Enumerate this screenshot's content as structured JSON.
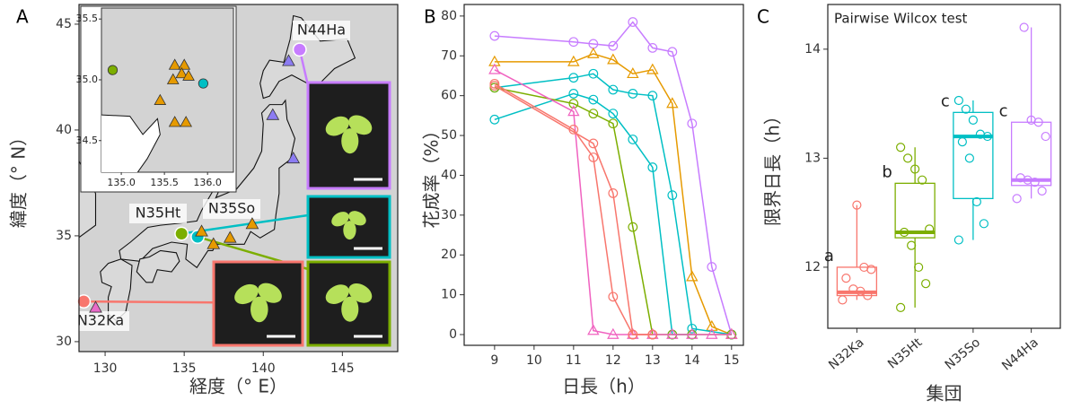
{
  "chart_data": [
    {
      "type": "map",
      "panel_label": "A",
      "xlabel": "経度（° E）",
      "ylabel": "緯度（° N）",
      "xlim": [
        128.35,
        148.5
      ],
      "ylim": [
        29.53,
        45.93
      ],
      "xticks": [
        130,
        135,
        140,
        145
      ],
      "yticks": [
        30,
        35,
        40,
        45
      ],
      "background": "#d3d3d3",
      "series": [
        {
          "marker": "circle",
          "color": "#c77cff",
          "x": [
            142.3
          ],
          "y": [
            43.8
          ],
          "labels": [
            "N44Ha"
          ]
        },
        {
          "marker": "circle",
          "color": "#7cae00",
          "x": [
            134.83
          ],
          "y": [
            35.1
          ],
          "labels": [
            "N35Ht"
          ]
        },
        {
          "marker": "circle",
          "color": "#00bfc4",
          "x": [
            135.85
          ],
          "y": [
            34.95
          ],
          "labels": [
            "N35So"
          ]
        },
        {
          "marker": "circle",
          "color": "#f8766d",
          "x": [
            128.65
          ],
          "y": [
            31.9
          ],
          "labels": [
            "N32Ka"
          ]
        },
        {
          "marker": "triangle",
          "color": "#8c7cf2",
          "x": [
            141.6,
            140.6,
            141.9
          ],
          "y": [
            43.25,
            40.7,
            38.65
          ]
        },
        {
          "marker": "triangle",
          "color": "#e69a00",
          "x": [
            136.1,
            136.85,
            137.9,
            139.3
          ],
          "y": [
            35.2,
            34.6,
            34.9,
            35.55
          ]
        },
        {
          "marker": "triangle",
          "color": "#e86ac8",
          "x": [
            129.4
          ],
          "y": [
            31.6
          ]
        }
      ],
      "inset": {
        "xlim": [
          134.77,
          136.3
        ],
        "ylim": [
          34.24,
          35.59
        ],
        "xticks": [
          {
            "value": 135,
            "label": "135.0"
          },
          135.5,
          {
            "value": 136,
            "label": "136.0"
          }
        ],
        "yticks": [
          34.5,
          {
            "value": 35,
            "label": "35.0"
          },
          35.5
        ],
        "series": [
          {
            "marker": "circle",
            "color": "#7cae00",
            "x": [
              134.9
            ],
            "y": [
              35.08
            ]
          },
          {
            "marker": "circle",
            "color": "#00bfc4",
            "x": [
              135.95
            ],
            "y": [
              34.97
            ]
          },
          {
            "marker": "triangle",
            "color": "#e69a00",
            "x": [
              135.62,
              135.73,
              135.7,
              135.6,
              135.78,
              135.45,
              135.62,
              135.75
            ],
            "y": [
              35.12,
              35.12,
              35.05,
              35.0,
              35.03,
              34.83,
              34.65,
              34.65
            ]
          }
        ]
      }
    },
    {
      "type": "line",
      "panel_label": "B",
      "xlabel": "日長（h）",
      "ylabel": "花成率（%）",
      "xlim": [
        8.23,
        15.3
      ],
      "ylim": [
        -2.7,
        82.9
      ],
      "xticks": [
        9,
        10,
        11,
        12,
        13,
        14,
        15
      ],
      "yticks": [
        0,
        10,
        20,
        30,
        40,
        50,
        60,
        70,
        80
      ],
      "series": [
        {
          "marker": "circle",
          "color": "#c77cff",
          "x": [
            9,
            11,
            11.5,
            12,
            12.5,
            13,
            13.5,
            14,
            14.5,
            15
          ],
          "values": [
            75,
            73.5,
            73,
            72.5,
            78.5,
            72,
            71,
            53,
            17,
            0
          ]
        },
        {
          "marker": "triangle",
          "color": "#e69a00",
          "x": [
            9,
            11,
            11.5,
            12,
            12.5,
            13,
            13.5,
            14,
            14.5,
            15
          ],
          "values": [
            68.5,
            68.5,
            70.5,
            69,
            65.5,
            66.5,
            58,
            14.5,
            2,
            0
          ]
        },
        {
          "marker": "circle",
          "color": "#00bfc4",
          "x": [
            9,
            11,
            11.5,
            12,
            12.5,
            13,
            13.5,
            14,
            15
          ],
          "values": [
            62,
            64.5,
            65.5,
            61.5,
            60.5,
            60,
            35,
            1.5,
            0
          ]
        },
        {
          "marker": "circle",
          "color": "#00bfc4",
          "x": [
            9,
            11,
            11.5,
            12,
            12.5,
            13,
            13.5,
            14
          ],
          "values": [
            54,
            60.5,
            59,
            55.5,
            49,
            42,
            0,
            0
          ]
        },
        {
          "marker": "circle",
          "color": "#7cae00",
          "x": [
            9,
            11,
            11.5,
            12,
            12.5,
            13,
            13.5,
            14,
            15
          ],
          "values": [
            62,
            58,
            55.5,
            53,
            27,
            0,
            0,
            0,
            0
          ]
        },
        {
          "marker": "triangle",
          "color": "#f062c0",
          "x": [
            9,
            11,
            11.5,
            12,
            12.5,
            13,
            13.5,
            14,
            14.5,
            15
          ],
          "values": [
            66.5,
            56,
            1,
            0,
            0,
            0,
            0,
            0,
            0,
            0
          ]
        },
        {
          "marker": "circle",
          "color": "#f8766d",
          "x": [
            9,
            11,
            11.5,
            12,
            12.5,
            13
          ],
          "values": [
            63,
            51.5,
            44.5,
            9.5,
            0,
            0
          ]
        },
        {
          "marker": "circle",
          "color": "#f8766d",
          "x": [
            9,
            11.5,
            12,
            12.5,
            13
          ],
          "values": [
            62.5,
            48,
            35.5,
            0,
            0
          ]
        }
      ]
    },
    {
      "type": "box",
      "panel_label": "C",
      "title": "Pairwise Wilcox test",
      "xlabel": "集団",
      "ylabel": "限界日長（h）",
      "ylim": [
        11.44,
        14.41
      ],
      "yticks": [
        12,
        13,
        14
      ],
      "categories": [
        "N32Ka",
        "N35Ht",
        "N35So",
        "N44Ha"
      ],
      "series": [
        {
          "color": "#f8766d",
          "min": 11.7,
          "q1": 11.74,
          "median": 11.77,
          "q3": 12.0,
          "max": 12.57,
          "letter": "a",
          "points": [
            11.7,
            11.74,
            11.78,
            11.8,
            11.9,
            11.98,
            12.0,
            12.57
          ]
        },
        {
          "color": "#7cae00",
          "min": 11.63,
          "q1": 12.27,
          "median": 12.32,
          "q3": 12.77,
          "max": 13.1,
          "letter": "b",
          "points": [
            11.63,
            11.85,
            12.0,
            12.2,
            12.32,
            12.35,
            12.8,
            12.9,
            13.0,
            13.1
          ]
        },
        {
          "color": "#00bfc4",
          "min": 12.25,
          "q1": 12.63,
          "median": 13.2,
          "q3": 13.42,
          "max": 13.53,
          "letter": "c",
          "points": [
            12.25,
            12.4,
            12.6,
            13.0,
            13.15,
            13.2,
            13.22,
            13.35,
            13.45,
            13.53
          ]
        },
        {
          "color": "#c77cff",
          "min": 12.63,
          "q1": 12.75,
          "median": 12.8,
          "q3": 13.33,
          "max": 14.2,
          "letter": "c",
          "points": [
            12.63,
            12.7,
            12.78,
            12.8,
            12.82,
            13.2,
            13.33,
            13.35,
            14.2
          ]
        }
      ]
    }
  ]
}
